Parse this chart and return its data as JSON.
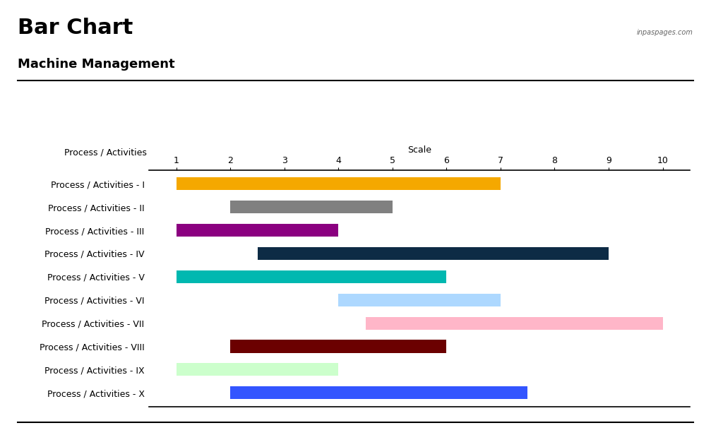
{
  "title": "Bar Chart",
  "subtitle": "Machine Management",
  "watermark": "inpaspages.com",
  "header_label": "Process / Activities",
  "scale_label": "Scale",
  "categories": [
    "Process / Activities - I",
    "Process / Activities - II",
    "Process / Activities - III",
    "Process / Activities - IV",
    "Process / Activities - V",
    "Process / Activities - VI",
    "Process / Activities - VII",
    "Process / Activities - VIII",
    "Process / Activities - IX",
    "Process / Activities - X"
  ],
  "bar_starts": [
    1.0,
    2.0,
    1.0,
    2.5,
    1.0,
    4.0,
    4.5,
    2.0,
    1.0,
    2.0
  ],
  "bar_ends": [
    7.0,
    5.0,
    4.0,
    9.0,
    6.0,
    7.0,
    10.0,
    6.0,
    4.0,
    7.5
  ],
  "bar_colors": [
    "#F5A800",
    "#808080",
    "#8B0080",
    "#0D2B45",
    "#00B8B0",
    "#ADD8FF",
    "#FFB6C8",
    "#6B0000",
    "#CCFFCC",
    "#3355FF"
  ],
  "xticks": [
    1,
    2,
    3,
    4,
    5,
    6,
    7,
    8,
    9,
    10
  ],
  "background_color": "#ffffff",
  "title_fontsize": 22,
  "subtitle_fontsize": 13,
  "axis_label_fontsize": 9,
  "tick_fontsize": 9,
  "bar_height": 0.55
}
